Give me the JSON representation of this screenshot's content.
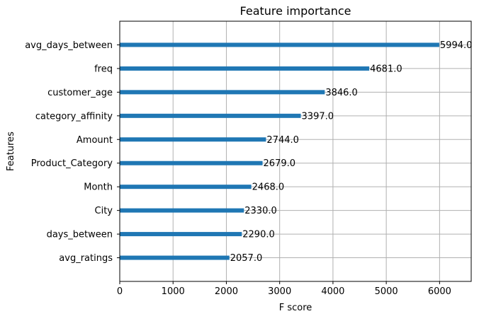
{
  "chart_data": {
    "type": "bar",
    "orientation": "horizontal",
    "title": "Feature importance",
    "xlabel": "F score",
    "ylabel": "Features",
    "categories": [
      "avg_ratings",
      "days_between",
      "City",
      "Month",
      "Product_Category",
      "Amount",
      "category_affinity",
      "customer_age",
      "freq",
      "avg_days_between"
    ],
    "values": [
      2057.0,
      2290.0,
      2330.0,
      2468.0,
      2679.0,
      2744.0,
      3397.0,
      3846.0,
      4681.0,
      5994.0
    ],
    "value_labels": [
      "2057.0",
      "2290.0",
      "2330.0",
      "2468.0",
      "2679.0",
      "2744.0",
      "3397.0",
      "3846.0",
      "4681.0",
      "5994.0"
    ],
    "xticks": [
      "0",
      "1000",
      "2000",
      "3000",
      "4000",
      "5000",
      "6000"
    ],
    "xlim": [
      0,
      6593.4
    ],
    "grid": true,
    "bar_color": "#1f77b4",
    "legend": "none"
  }
}
